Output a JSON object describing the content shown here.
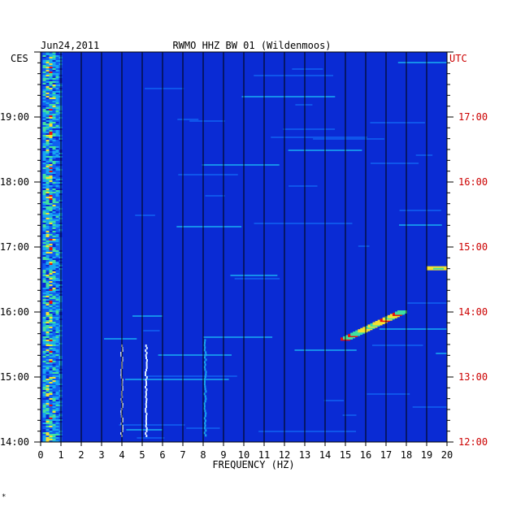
{
  "header": {
    "date": "Jun24,2011",
    "station": "RWMO HHZ BW 01 (Wildenmoos)"
  },
  "axes": {
    "left_zone": "CES",
    "right_zone": "UTC",
    "xlabel": "FREQUENCY (HZ)"
  },
  "footnote": "*",
  "colors": {
    "background_blue": "#0a2bd4",
    "grid_line": "#000000",
    "utc_label": "#cc0000",
    "text": "#000000"
  },
  "chart_data": {
    "type": "heatmap",
    "title": "RWMO HHZ BW 01 (Wildenmoos)",
    "date": "Jun24,2011",
    "xlabel": "FREQUENCY (HZ)",
    "xlim": [
      0,
      20
    ],
    "x_ticks": [
      "0",
      "1",
      "2",
      "3",
      "4",
      "5",
      "6",
      "7",
      "8",
      "9",
      "10",
      "11",
      "12",
      "13",
      "14",
      "15",
      "16",
      "17",
      "18",
      "19",
      "20"
    ],
    "y_left_ticks": [
      "14:00",
      "15:00",
      "16:00",
      "17:00",
      "18:00",
      "19:00"
    ],
    "y_right_ticks": [
      "12:00",
      "13:00",
      "14:00",
      "15:00",
      "16:00",
      "17:00"
    ],
    "y_left_timezone": "CES",
    "y_right_timezone": "UTC",
    "ylim_hours_ces": [
      14.0,
      20.0
    ],
    "colormap": "blue-cyan-yellow-red",
    "features": [
      {
        "name": "low-frequency band",
        "freq_range_hz": [
          0.1,
          1.0
        ],
        "time_range_ces": [
          "14:00",
          "20:00"
        ],
        "intensity": "high"
      },
      {
        "name": "narrow line",
        "freq_hz": 4.0,
        "time_range_ces": [
          "14:05",
          "15:30"
        ],
        "intensity": "medium"
      },
      {
        "name": "narrow line",
        "freq_hz": 5.2,
        "time_range_ces": [
          "14:05",
          "15:30"
        ],
        "intensity": "medium"
      },
      {
        "name": "narrow line",
        "freq_hz": 8.1,
        "time_range_ces": [
          "14:05",
          "15:35"
        ],
        "intensity": "low"
      },
      {
        "name": "sweeping tone",
        "freq_range_hz": [
          15.0,
          17.8
        ],
        "time_range_ces": [
          "15:35",
          "16:00"
        ],
        "intensity": "high"
      },
      {
        "name": "high-frequency burst",
        "freq_range_hz": [
          19.0,
          20.0
        ],
        "time_ces": "16:40",
        "intensity": "high"
      }
    ]
  }
}
